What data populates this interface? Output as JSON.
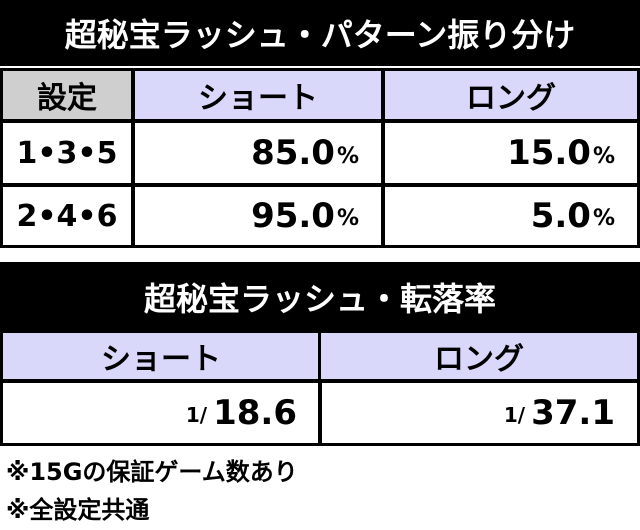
{
  "header": {
    "title": "超秘宝ラッシュ・パターン振り分け"
  },
  "table": {
    "columns": [
      "設定",
      "ショート",
      "ロング"
    ],
    "rows": [
      [
        "1•3•5",
        {
          "value": "85.0",
          "unit": "%"
        },
        {
          "value": "15.0",
          "unit": "%"
        }
      ],
      [
        "2•4•6",
        {
          "value": "95.0",
          "unit": "%"
        },
        {
          "value": "5.0",
          "unit": "%"
        }
      ]
    ]
  },
  "section2": {
    "title": "超秘宝ラッシュ・転落率",
    "columns": [
      "ショート",
      "ロング"
    ],
    "rows": [
      [
        {
          "prefix": "1/",
          "value": "18.6"
        },
        {
          "prefix": "1/",
          "value": "37.1"
        }
      ]
    ]
  },
  "notes": [
    "※15Gの保証ゲーム数あり",
    "※全設定共通"
  ]
}
